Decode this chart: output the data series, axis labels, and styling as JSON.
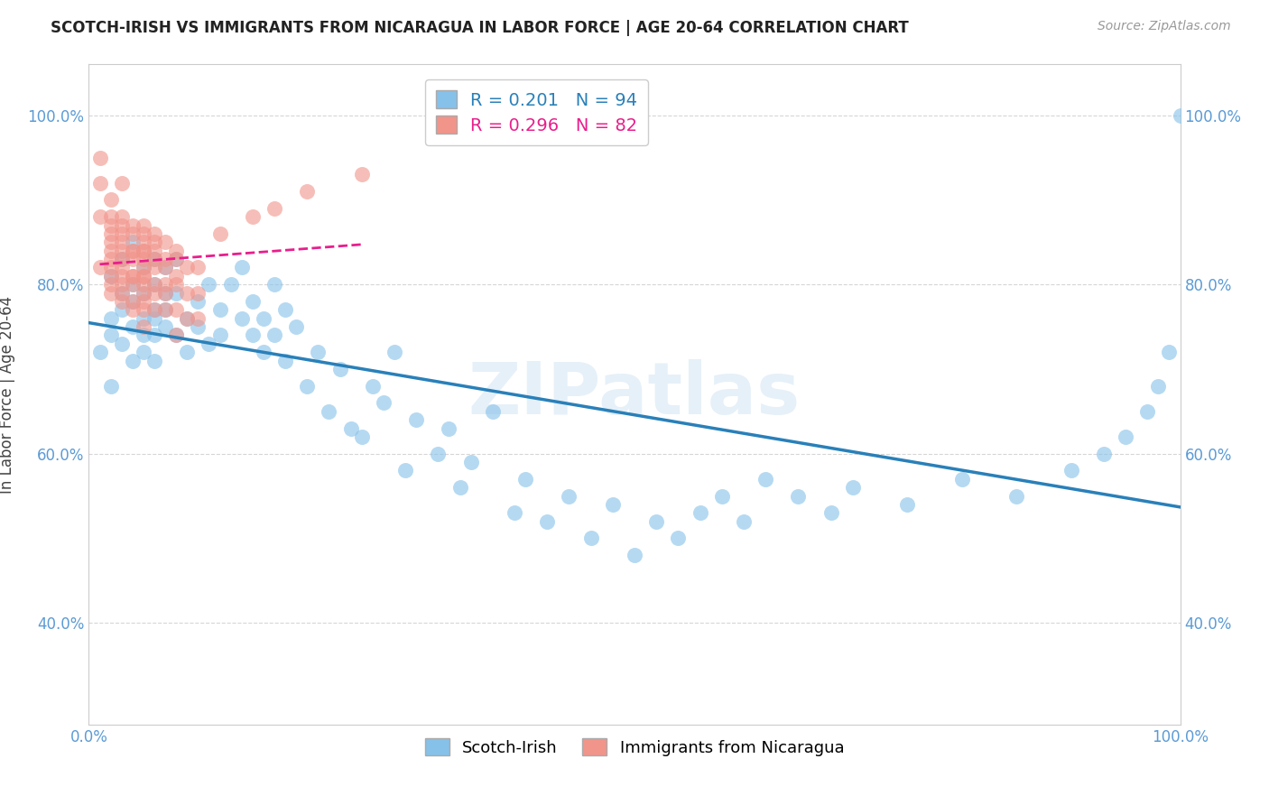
{
  "title": "SCOTCH-IRISH VS IMMIGRANTS FROM NICARAGUA IN LABOR FORCE | AGE 20-64 CORRELATION CHART",
  "source": "Source: ZipAtlas.com",
  "ylabel": "In Labor Force | Age 20-64",
  "xlim": [
    0,
    1
  ],
  "ylim": [
    0.28,
    1.06
  ],
  "yticks": [
    0.4,
    0.6,
    0.8,
    1.0
  ],
  "yticklabels": [
    "40.0%",
    "60.0%",
    "80.0%",
    "100.0%"
  ],
  "blue_R": 0.201,
  "blue_N": 94,
  "pink_R": 0.296,
  "pink_N": 82,
  "blue_color": "#85c1e9",
  "pink_color": "#f1948a",
  "blue_line_color": "#2980b9",
  "pink_line_color": "#e91e8c",
  "watermark": "ZIPatlas",
  "legend_label_blue": "Scotch-Irish",
  "legend_label_pink": "Immigrants from Nicaragua",
  "blue_scatter_x": [
    0.01,
    0.02,
    0.02,
    0.02,
    0.02,
    0.03,
    0.03,
    0.03,
    0.03,
    0.04,
    0.04,
    0.04,
    0.04,
    0.04,
    0.05,
    0.05,
    0.05,
    0.05,
    0.05,
    0.06,
    0.06,
    0.06,
    0.06,
    0.06,
    0.06,
    0.07,
    0.07,
    0.07,
    0.07,
    0.08,
    0.08,
    0.08,
    0.09,
    0.09,
    0.1,
    0.1,
    0.11,
    0.11,
    0.12,
    0.12,
    0.13,
    0.14,
    0.14,
    0.15,
    0.15,
    0.16,
    0.16,
    0.17,
    0.17,
    0.18,
    0.18,
    0.19,
    0.2,
    0.21,
    0.22,
    0.23,
    0.24,
    0.25,
    0.26,
    0.27,
    0.28,
    0.29,
    0.3,
    0.32,
    0.33,
    0.34,
    0.35,
    0.37,
    0.39,
    0.4,
    0.42,
    0.44,
    0.46,
    0.48,
    0.5,
    0.52,
    0.54,
    0.56,
    0.58,
    0.6,
    0.62,
    0.65,
    0.68,
    0.7,
    0.75,
    0.8,
    0.85,
    0.9,
    0.93,
    0.95,
    0.97,
    0.98,
    0.99,
    1.0
  ],
  "blue_scatter_y": [
    0.72,
    0.76,
    0.68,
    0.81,
    0.74,
    0.79,
    0.73,
    0.83,
    0.77,
    0.8,
    0.75,
    0.71,
    0.85,
    0.78,
    0.76,
    0.82,
    0.74,
    0.79,
    0.72,
    0.77,
    0.8,
    0.74,
    0.83,
    0.76,
    0.71,
    0.79,
    0.75,
    0.82,
    0.77,
    0.74,
    0.79,
    0.83,
    0.76,
    0.72,
    0.78,
    0.75,
    0.8,
    0.73,
    0.77,
    0.74,
    0.8,
    0.76,
    0.82,
    0.74,
    0.78,
    0.72,
    0.76,
    0.8,
    0.74,
    0.77,
    0.71,
    0.75,
    0.68,
    0.72,
    0.65,
    0.7,
    0.63,
    0.62,
    0.68,
    0.66,
    0.72,
    0.58,
    0.64,
    0.6,
    0.63,
    0.56,
    0.59,
    0.65,
    0.53,
    0.57,
    0.52,
    0.55,
    0.5,
    0.54,
    0.48,
    0.52,
    0.5,
    0.53,
    0.55,
    0.52,
    0.57,
    0.55,
    0.53,
    0.56,
    0.54,
    0.57,
    0.55,
    0.58,
    0.6,
    0.62,
    0.65,
    0.68,
    0.72,
    1.0
  ],
  "pink_scatter_x": [
    0.01,
    0.01,
    0.01,
    0.01,
    0.02,
    0.02,
    0.02,
    0.02,
    0.02,
    0.02,
    0.02,
    0.02,
    0.02,
    0.02,
    0.02,
    0.03,
    0.03,
    0.03,
    0.03,
    0.03,
    0.03,
    0.03,
    0.03,
    0.03,
    0.03,
    0.03,
    0.03,
    0.04,
    0.04,
    0.04,
    0.04,
    0.04,
    0.04,
    0.04,
    0.04,
    0.04,
    0.04,
    0.05,
    0.05,
    0.05,
    0.05,
    0.05,
    0.05,
    0.05,
    0.05,
    0.05,
    0.05,
    0.05,
    0.05,
    0.05,
    0.05,
    0.06,
    0.06,
    0.06,
    0.06,
    0.06,
    0.06,
    0.06,
    0.06,
    0.07,
    0.07,
    0.07,
    0.07,
    0.07,
    0.07,
    0.08,
    0.08,
    0.08,
    0.08,
    0.08,
    0.08,
    0.09,
    0.09,
    0.09,
    0.1,
    0.1,
    0.1,
    0.12,
    0.15,
    0.17,
    0.2,
    0.25
  ],
  "pink_scatter_y": [
    0.88,
    0.92,
    0.95,
    0.82,
    0.9,
    0.87,
    0.84,
    0.81,
    0.88,
    0.85,
    0.82,
    0.79,
    0.86,
    0.83,
    0.8,
    0.88,
    0.85,
    0.82,
    0.79,
    0.86,
    0.83,
    0.8,
    0.87,
    0.84,
    0.81,
    0.78,
    0.92,
    0.86,
    0.83,
    0.8,
    0.77,
    0.84,
    0.81,
    0.87,
    0.84,
    0.81,
    0.78,
    0.85,
    0.82,
    0.79,
    0.86,
    0.83,
    0.8,
    0.77,
    0.84,
    0.81,
    0.87,
    0.84,
    0.81,
    0.78,
    0.75,
    0.85,
    0.82,
    0.79,
    0.86,
    0.83,
    0.8,
    0.77,
    0.84,
    0.83,
    0.8,
    0.77,
    0.85,
    0.82,
    0.79,
    0.83,
    0.8,
    0.77,
    0.74,
    0.84,
    0.81,
    0.82,
    0.79,
    0.76,
    0.82,
    0.79,
    0.76,
    0.86,
    0.88,
    0.89,
    0.91,
    0.93
  ]
}
